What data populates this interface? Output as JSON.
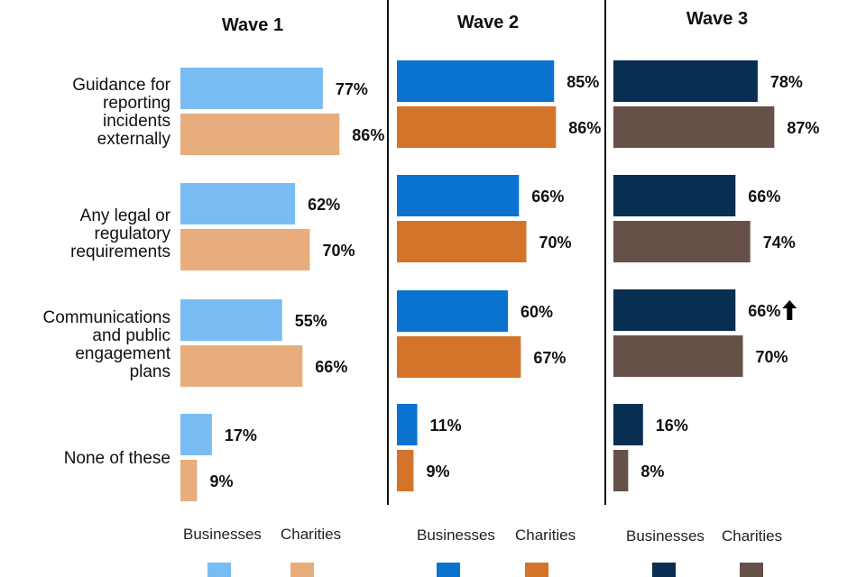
{
  "chart_data": {
    "type": "bar",
    "orientation": "horizontal",
    "xlim": [
      0,
      100
    ],
    "unit": "%",
    "categories": [
      [
        "Guidance for",
        "reporting",
        "incidents",
        "externally"
      ],
      [
        "Any legal or",
        "regulatory",
        "requirements"
      ],
      [
        "Communications",
        "and public",
        "engagement",
        "plans"
      ],
      [
        "None of these"
      ]
    ],
    "panels": [
      {
        "title": "Wave 1",
        "series": [
          {
            "name": "Businesses",
            "color": "#79BCF4",
            "values": [
              77,
              62,
              55,
              17
            ],
            "labels": [
              "77%",
              "62%",
              "55%",
              "17%"
            ]
          },
          {
            "name": "Charities",
            "color": "#E7AD7D",
            "values": [
              86,
              70,
              66,
              9
            ],
            "labels": [
              "86%",
              "70%",
              "66%",
              "9%"
            ]
          }
        ]
      },
      {
        "title": "Wave 2",
        "series": [
          {
            "name": "Businesses",
            "color": "#0A73CF",
            "values": [
              85,
              66,
              60,
              11
            ],
            "labels": [
              "85%",
              "66%",
              "60%",
              "11%"
            ]
          },
          {
            "name": "Charities",
            "color": "#D4742A",
            "values": [
              86,
              70,
              67,
              9
            ],
            "labels": [
              "86%",
              "70%",
              "67%",
              "9%"
            ]
          }
        ]
      },
      {
        "title": "Wave 3",
        "series": [
          {
            "name": "Businesses",
            "color": "#082F52",
            "values": [
              78,
              66,
              66,
              16
            ],
            "labels": [
              "78%",
              "66%",
              "66%",
              "16%"
            ]
          },
          {
            "name": "Charities",
            "color": "#665148",
            "values": [
              87,
              74,
              70,
              8
            ],
            "labels": [
              "87%",
              "74%",
              "70%",
              "8%"
            ]
          }
        ]
      }
    ],
    "annotations": [
      {
        "panel": 2,
        "series": 0,
        "category": 2,
        "marker": "up-arrow"
      }
    ],
    "legend_placement": "bottom",
    "grid": false
  }
}
